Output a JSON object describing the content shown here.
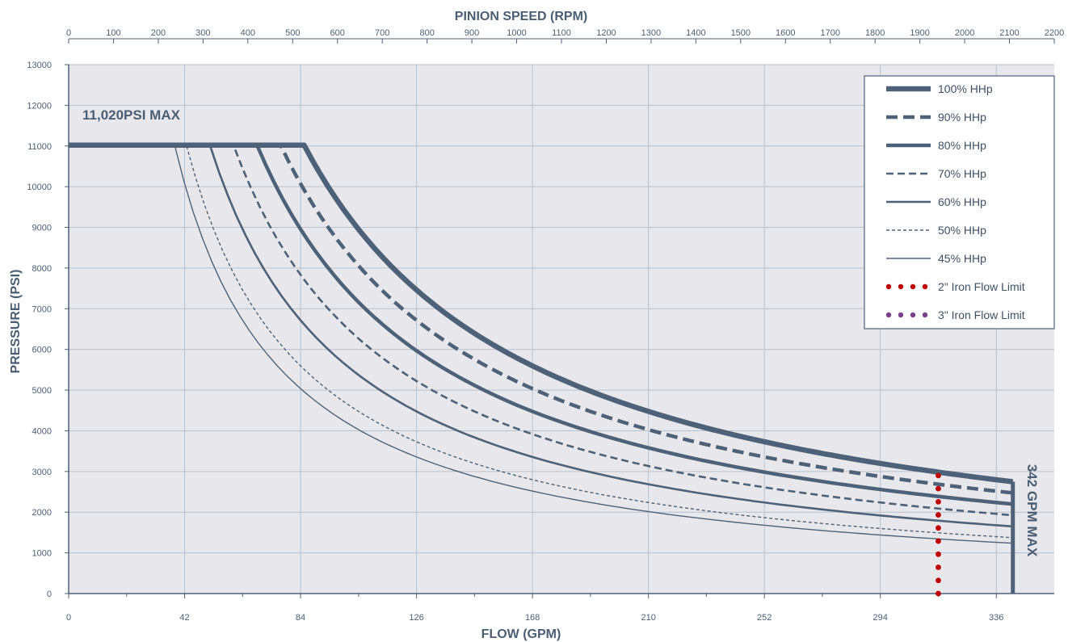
{
  "chart_data": {
    "type": "line",
    "title": "",
    "xlabel": "FLOW (GPM)",
    "ylabel": "PRESSURE (PSI)",
    "x2label": "PINION SPEED (RPM)",
    "xlim": [
      0,
      357
    ],
    "ylim": [
      0,
      13000
    ],
    "x_ticks": [
      0,
      42,
      84,
      126,
      168,
      210,
      252,
      294,
      336
    ],
    "y_ticks": [
      0,
      1000,
      2000,
      3000,
      4000,
      5000,
      6000,
      7000,
      8000,
      9000,
      10000,
      11000,
      12000,
      13000
    ],
    "x2_ticks": [
      "0",
      "100",
      "200",
      "300",
      "400",
      "500",
      "600",
      "700",
      "800",
      "900",
      "1000",
      "1100",
      "1200",
      "1300",
      "1400",
      "1500",
      "1600",
      "1700",
      "1800",
      "1900",
      "2000",
      "2100",
      "2200"
    ],
    "x2_max": 2200,
    "grid": true,
    "legend_position": "top-right",
    "annotations": {
      "pressure_max": "11,020PSI MAX",
      "flow_max": "342 GPM MAX"
    },
    "colors": {
      "series": "#4d6178",
      "iron2": "#c00000",
      "iron3": "#7b3f8c",
      "plot_bg": "#e8e8ec",
      "grid": "#b8c0cc",
      "axis_text": "#4a5e73"
    },
    "pressure_cap": 11020,
    "flow_cap": 342,
    "series": [
      {
        "name": "100% HHp",
        "hp_product": 940000,
        "end_flow": 342,
        "style": "solid",
        "weight": "extra-heavy"
      },
      {
        "name": "90% HHp",
        "hp_product": 846000,
        "end_flow": 342,
        "style": "dashed",
        "weight": "heavy"
      },
      {
        "name": "80% HHp",
        "hp_product": 752000,
        "end_flow": 342,
        "style": "solid",
        "weight": "heavy"
      },
      {
        "name": "70% HHp",
        "hp_product": 658000,
        "end_flow": 342,
        "style": "dashed",
        "weight": "medium"
      },
      {
        "name": "60% HHp",
        "hp_product": 564000,
        "end_flow": 342,
        "style": "solid",
        "weight": "medium"
      },
      {
        "name": "50% HHp",
        "hp_product": 470000,
        "end_flow": 342,
        "style": "dashed",
        "weight": "light"
      },
      {
        "name": "45% HHp",
        "hp_product": 423000,
        "end_flow": 342,
        "style": "solid",
        "weight": "light"
      },
      {
        "name": "2\" Iron Flow Limit",
        "x": 315,
        "y_range": [
          0,
          2900
        ],
        "style": "dotted",
        "color_key": "iron2"
      },
      {
        "name": "3\" Iron Flow Limit",
        "style": "dotted",
        "color_key": "iron3"
      }
    ]
  }
}
